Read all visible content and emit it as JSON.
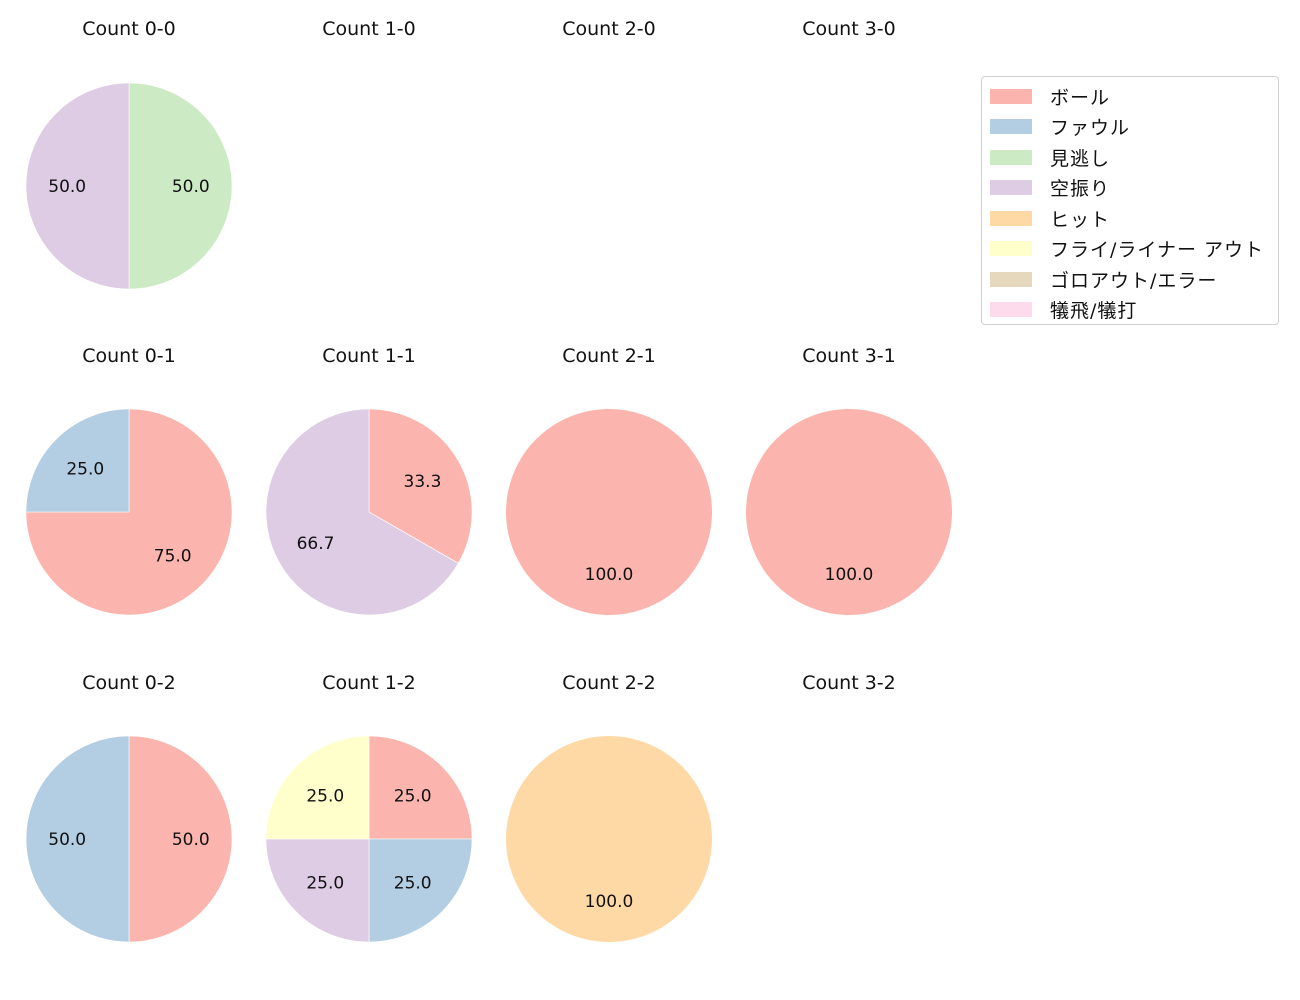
{
  "chart_data": {
    "type": "pie",
    "layout": {
      "rows": 3,
      "cols": 4,
      "start_angle": 90,
      "direction": "clockwise",
      "autopct": "%.1f",
      "legend_position": "upper right"
    },
    "categories": [
      "ボール",
      "ファウル",
      "見逃し",
      "空振り",
      "ヒット",
      "フライ/ライナー アウト",
      "ゴロアウト/エラー",
      "犠飛/犠打"
    ],
    "colors": [
      "#fbb4ae",
      "#b3cde3",
      "#ccebc5",
      "#decbe4",
      "#fed9a6",
      "#ffffcc",
      "#e5d8bd",
      "#fddaec"
    ],
    "subplots": [
      {
        "title": "Count 0-0",
        "row": 0,
        "col": 0,
        "values": [
          0,
          0,
          50.0,
          50.0,
          0,
          0,
          0,
          0
        ]
      },
      {
        "title": "Count 1-0",
        "row": 0,
        "col": 1,
        "values": []
      },
      {
        "title": "Count 2-0",
        "row": 0,
        "col": 2,
        "values": []
      },
      {
        "title": "Count 3-0",
        "row": 0,
        "col": 3,
        "values": []
      },
      {
        "title": "Count 0-1",
        "row": 1,
        "col": 0,
        "values": [
          75.0,
          25.0,
          0,
          0,
          0,
          0,
          0,
          0
        ]
      },
      {
        "title": "Count 1-1",
        "row": 1,
        "col": 1,
        "values": [
          33.3,
          0,
          0,
          66.7,
          0,
          0,
          0,
          0
        ]
      },
      {
        "title": "Count 2-1",
        "row": 1,
        "col": 2,
        "values": [
          100.0,
          0,
          0,
          0,
          0,
          0,
          0,
          0
        ]
      },
      {
        "title": "Count 3-1",
        "row": 1,
        "col": 3,
        "values": [
          100.0,
          0,
          0,
          0,
          0,
          0,
          0,
          0
        ]
      },
      {
        "title": "Count 0-2",
        "row": 2,
        "col": 0,
        "values": [
          50.0,
          50.0,
          0,
          0,
          0,
          0,
          0,
          0
        ]
      },
      {
        "title": "Count 1-2",
        "row": 2,
        "col": 1,
        "values": [
          25.0,
          25.0,
          0,
          25.0,
          0,
          25.0,
          0,
          0
        ]
      },
      {
        "title": "Count 2-2",
        "row": 2,
        "col": 2,
        "values": [
          0,
          0,
          0,
          0,
          100.0,
          0,
          0,
          0
        ]
      },
      {
        "title": "Count 3-2",
        "row": 2,
        "col": 3,
        "values": []
      }
    ]
  },
  "legend": {
    "items": [
      {
        "label": "ボール",
        "color": "#fbb4ae"
      },
      {
        "label": "ファウル",
        "color": "#b3cde3"
      },
      {
        "label": "見逃し",
        "color": "#ccebc5"
      },
      {
        "label": "空振り",
        "color": "#decbe4"
      },
      {
        "label": "ヒット",
        "color": "#fed9a6"
      },
      {
        "label": "フライ/ライナー アウト",
        "color": "#ffffcc"
      },
      {
        "label": "ゴロアウト/エラー",
        "color": "#e5d8bd"
      },
      {
        "label": "犠飛/犠打",
        "color": "#fddaec"
      }
    ]
  }
}
